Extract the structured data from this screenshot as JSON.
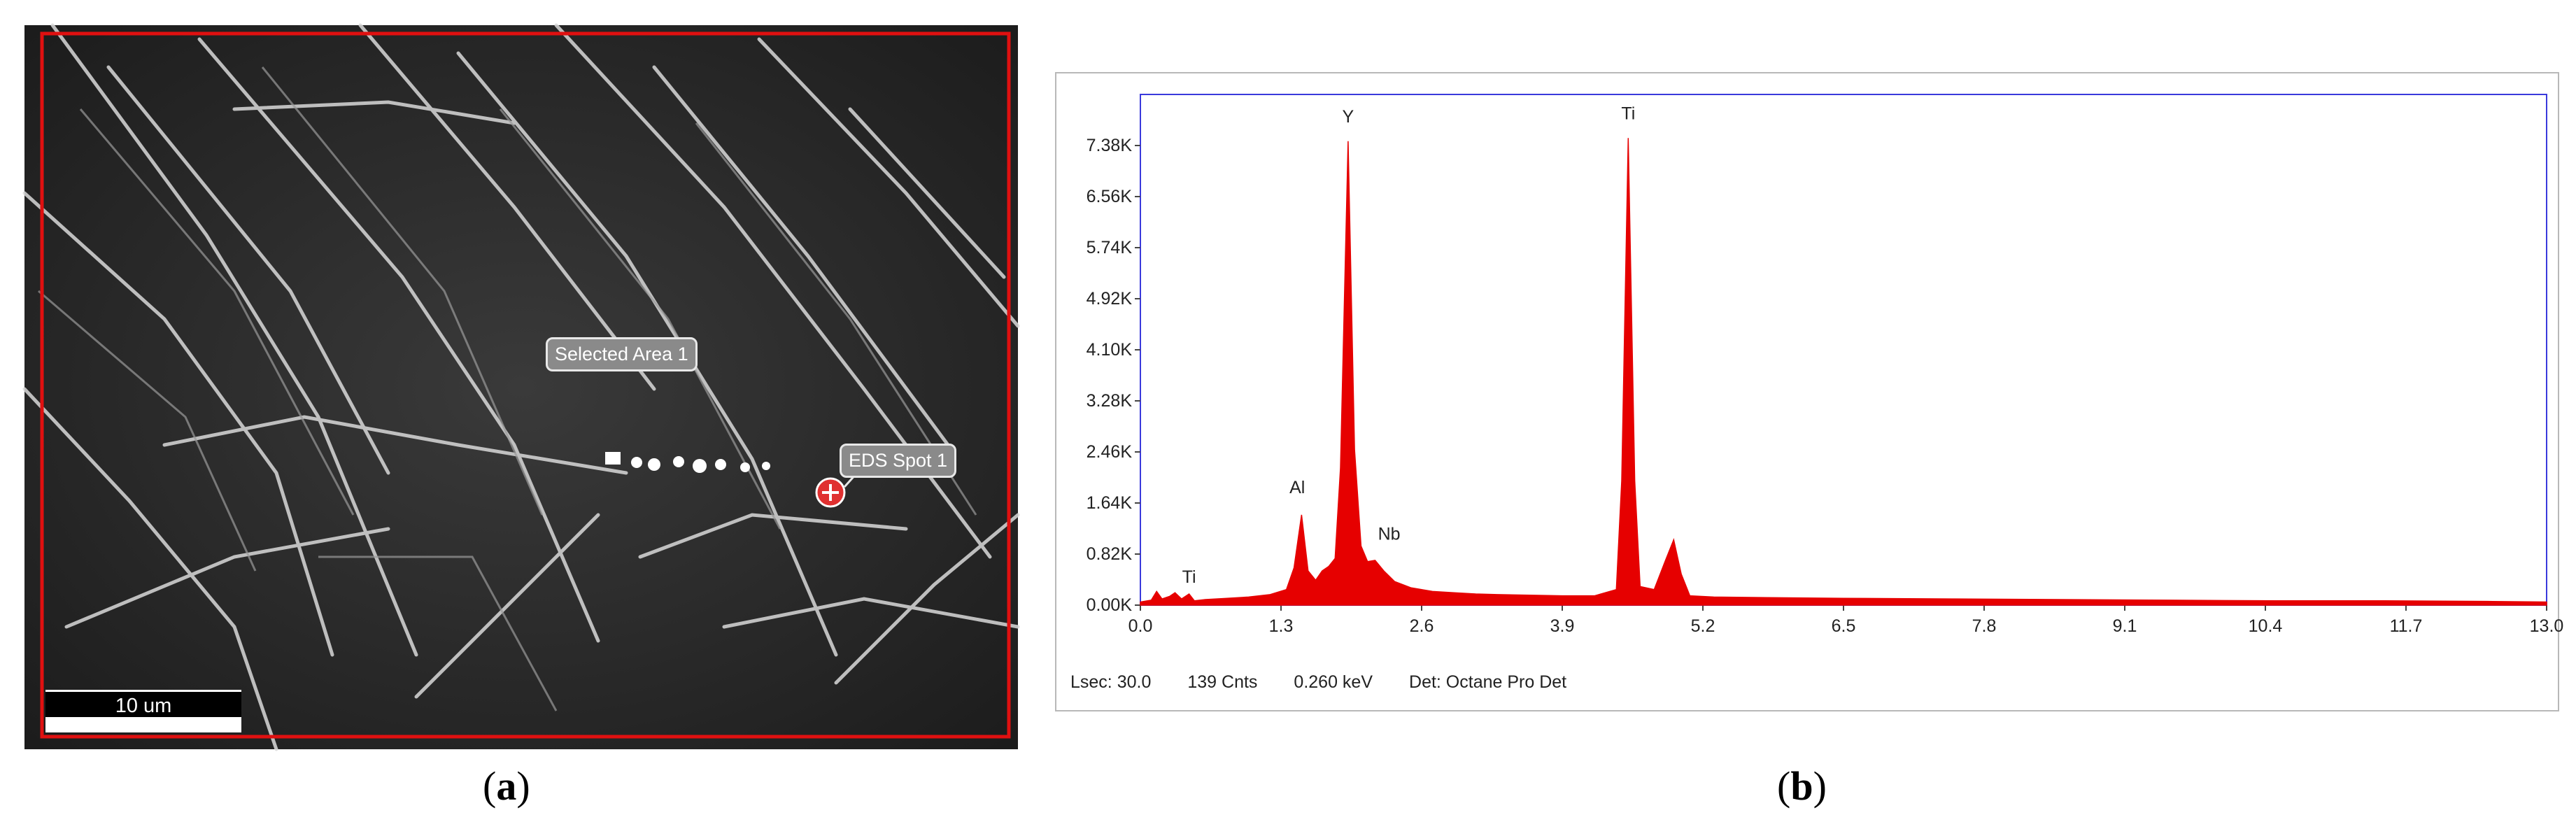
{
  "panel_a": {
    "caption_open": "(",
    "caption_letter": "a",
    "caption_close": ")",
    "labels": {
      "selected_area": "Selected Area 1",
      "eds_spot": "EDS Spot 1"
    },
    "scale_bar": "10 um",
    "colors": {
      "frame": "#e01010",
      "spot_marker": "#e03030"
    }
  },
  "panel_b": {
    "caption_open": "(",
    "caption_letter": "b",
    "caption_close": ")",
    "status": {
      "lsec": "Lsec: 30.0",
      "counts": "139 Cnts",
      "energy": "0.260 keV",
      "detector": "Det: Octane Pro Det"
    }
  },
  "chart_data": {
    "type": "area",
    "title": "",
    "xlabel": "",
    "ylabel": "",
    "xlim": [
      0.0,
      13.0
    ],
    "ylim": [
      0.0,
      8.2
    ],
    "x_ticks": [
      "0.0",
      "1.3",
      "2.6",
      "3.9",
      "5.2",
      "6.5",
      "7.8",
      "9.1",
      "10.4",
      "11.7",
      "13.0"
    ],
    "y_ticks": [
      "0.00K",
      "0.82K",
      "1.64K",
      "2.46K",
      "3.28K",
      "4.10K",
      "4.92K",
      "5.74K",
      "6.56K",
      "7.38K"
    ],
    "fill_color": "#e60000",
    "frame_color": "#3a3adc",
    "peaks": [
      {
        "label": "Ti",
        "x": 0.45,
        "y": 0.18,
        "label_x": 0.45,
        "label_y": 0.36
      },
      {
        "label": "Al",
        "x": 1.49,
        "y": 1.45,
        "label_x": 1.45,
        "label_y": 1.8
      },
      {
        "label": "Y",
        "x": 1.92,
        "y": 7.45,
        "label_x": 1.92,
        "label_y": 7.75
      },
      {
        "label": "Nb",
        "x": 2.17,
        "y": 0.72,
        "label_x": 2.3,
        "label_y": 1.05
      },
      {
        "label": "Ti",
        "x": 4.51,
        "y": 7.5,
        "label_x": 4.51,
        "label_y": 7.8
      }
    ],
    "spectrum": [
      [
        0.0,
        0.05
      ],
      [
        0.1,
        0.08
      ],
      [
        0.15,
        0.22
      ],
      [
        0.2,
        0.1
      ],
      [
        0.27,
        0.14
      ],
      [
        0.32,
        0.2
      ],
      [
        0.38,
        0.1
      ],
      [
        0.45,
        0.18
      ],
      [
        0.5,
        0.07
      ],
      [
        0.6,
        0.09
      ],
      [
        0.8,
        0.11
      ],
      [
        1.0,
        0.13
      ],
      [
        1.2,
        0.17
      ],
      [
        1.35,
        0.25
      ],
      [
        1.42,
        0.6
      ],
      [
        1.49,
        1.45
      ],
      [
        1.55,
        0.55
      ],
      [
        1.62,
        0.4
      ],
      [
        1.68,
        0.55
      ],
      [
        1.74,
        0.62
      ],
      [
        1.8,
        0.75
      ],
      [
        1.85,
        2.2
      ],
      [
        1.92,
        7.45
      ],
      [
        1.98,
        2.5
      ],
      [
        2.04,
        0.95
      ],
      [
        2.1,
        0.7
      ],
      [
        2.17,
        0.72
      ],
      [
        2.25,
        0.55
      ],
      [
        2.35,
        0.38
      ],
      [
        2.5,
        0.28
      ],
      [
        2.7,
        0.22
      ],
      [
        2.9,
        0.2
      ],
      [
        3.1,
        0.18
      ],
      [
        3.3,
        0.17
      ],
      [
        3.6,
        0.16
      ],
      [
        3.9,
        0.15
      ],
      [
        4.2,
        0.15
      ],
      [
        4.4,
        0.25
      ],
      [
        4.45,
        2.0
      ],
      [
        4.51,
        7.5
      ],
      [
        4.57,
        2.0
      ],
      [
        4.62,
        0.3
      ],
      [
        4.75,
        0.25
      ],
      [
        4.85,
        0.7
      ],
      [
        4.93,
        1.05
      ],
      [
        5.0,
        0.5
      ],
      [
        5.08,
        0.15
      ],
      [
        5.3,
        0.13
      ],
      [
        5.8,
        0.12
      ],
      [
        6.5,
        0.11
      ],
      [
        7.5,
        0.1
      ],
      [
        8.5,
        0.09
      ],
      [
        9.5,
        0.08
      ],
      [
        10.5,
        0.07
      ],
      [
        11.5,
        0.07
      ],
      [
        12.5,
        0.06
      ],
      [
        13.0,
        0.05
      ]
    ]
  }
}
